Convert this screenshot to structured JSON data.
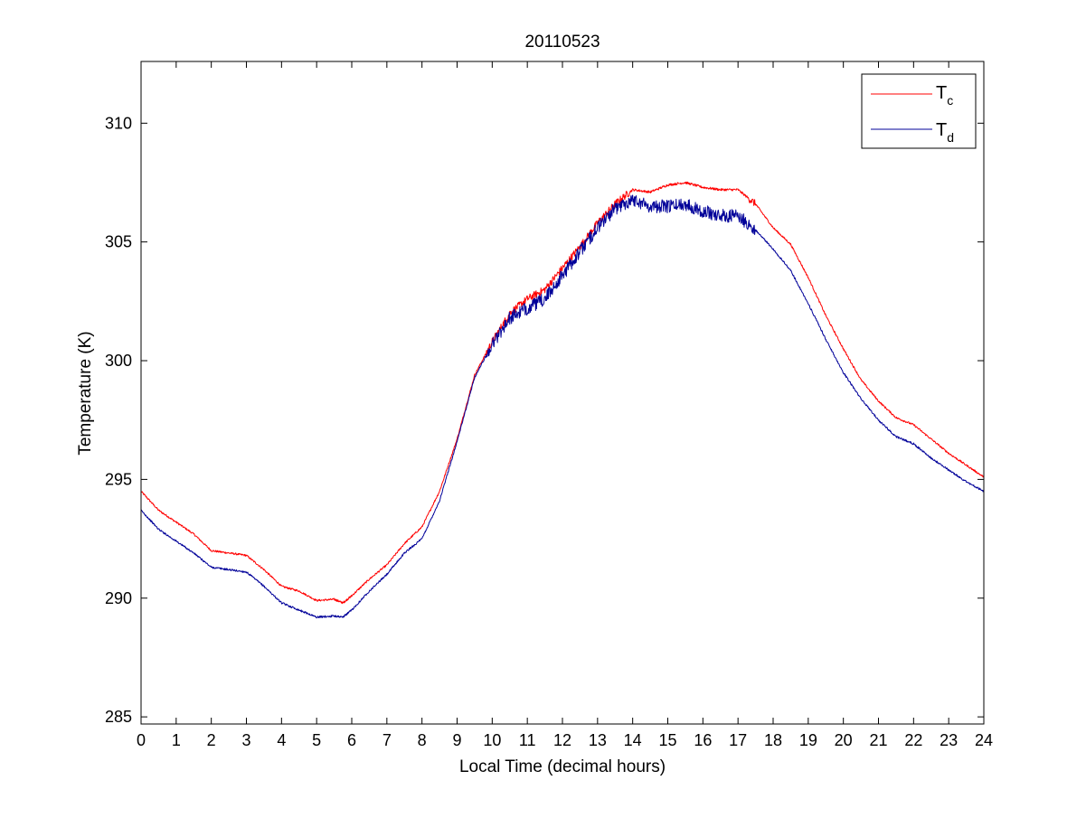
{
  "chart_data": {
    "type": "line",
    "title": "20110523",
    "xlabel": "Local Time (decimal hours)",
    "ylabel": "Temperature (K)",
    "xlim": [
      0,
      24
    ],
    "ylim": [
      284.7,
      312.6
    ],
    "xticks": [
      0,
      1,
      2,
      3,
      4,
      5,
      6,
      7,
      8,
      9,
      10,
      11,
      12,
      13,
      14,
      15,
      16,
      17,
      18,
      19,
      20,
      21,
      22,
      23,
      24
    ],
    "yticks": [
      285,
      290,
      295,
      300,
      305,
      310
    ],
    "grid": false,
    "legend_position": "top-right",
    "series": [
      {
        "name_base": "T",
        "name_sub": "c",
        "color": "#ff0000",
        "x": [
          0,
          0.5,
          1,
          1.5,
          2,
          2.5,
          3,
          3.5,
          4,
          4.5,
          5,
          5.5,
          5.75,
          6,
          6.5,
          7,
          7.5,
          8,
          8.5,
          9,
          9.5,
          10,
          10.5,
          11,
          11.5,
          12,
          12.5,
          13,
          13.5,
          14,
          14.5,
          15,
          15.5,
          16,
          16.5,
          17,
          17.5,
          18,
          18.5,
          19,
          19.5,
          20,
          20.5,
          21,
          21.5,
          22,
          22.5,
          23,
          23.5,
          24
        ],
        "y": [
          294.5,
          293.7,
          293.2,
          292.7,
          292.0,
          291.9,
          291.8,
          291.2,
          290.5,
          290.3,
          289.9,
          289.95,
          289.8,
          290.1,
          290.8,
          291.4,
          292.3,
          293.0,
          294.5,
          296.7,
          299.4,
          300.8,
          302.0,
          302.6,
          303.0,
          303.9,
          304.8,
          305.8,
          306.6,
          307.2,
          307.1,
          307.4,
          307.5,
          307.3,
          307.2,
          307.2,
          306.6,
          305.6,
          304.9,
          303.5,
          301.9,
          300.5,
          299.2,
          298.3,
          297.6,
          297.3,
          296.7,
          296.1,
          295.6,
          295.1
        ]
      },
      {
        "name_base": "T",
        "name_sub": "d",
        "color": "#000099",
        "x": [
          0,
          0.5,
          1,
          1.5,
          2,
          2.5,
          3,
          3.5,
          4,
          4.5,
          5,
          5.5,
          5.75,
          6,
          6.5,
          7,
          7.5,
          8,
          8.5,
          9,
          9.5,
          10,
          10.5,
          11,
          11.5,
          12,
          12.5,
          13,
          13.5,
          14,
          14.5,
          15,
          15.5,
          16,
          16.5,
          17,
          17.5,
          18,
          18.5,
          19,
          19.5,
          20,
          20.5,
          21,
          21.5,
          22,
          22.5,
          23,
          23.5,
          24
        ],
        "y": [
          293.7,
          292.9,
          292.4,
          291.9,
          291.3,
          291.2,
          291.1,
          290.5,
          289.8,
          289.5,
          289.2,
          289.25,
          289.2,
          289.5,
          290.3,
          291.0,
          291.9,
          292.5,
          294.1,
          296.6,
          299.3,
          300.7,
          301.8,
          302.2,
          302.6,
          303.6,
          304.6,
          305.6,
          306.4,
          306.8,
          306.5,
          306.5,
          306.6,
          306.3,
          306.1,
          306.1,
          305.5,
          304.7,
          303.8,
          302.4,
          300.9,
          299.5,
          298.4,
          297.5,
          296.8,
          296.5,
          295.9,
          295.4,
          294.9,
          294.5
        ]
      }
    ]
  }
}
